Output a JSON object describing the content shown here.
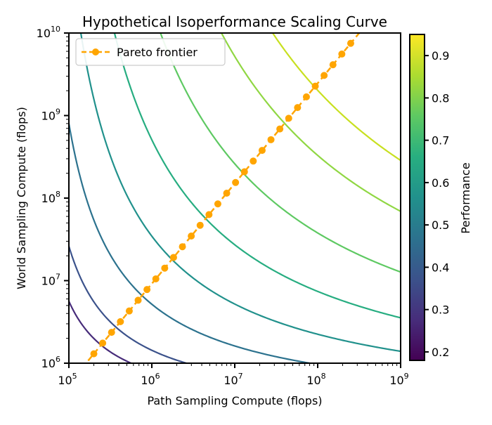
{
  "chart_data": {
    "type": "contour",
    "title": "Hypothetical Isoperformance Scaling Curve",
    "xlabel": "Path Sampling Compute (flops)",
    "ylabel": "World Sampling Compute (flops)",
    "xscale": "log",
    "yscale": "log",
    "xlim": [
      100000,
      1000000000
    ],
    "ylim": [
      1000000,
      10000000000
    ],
    "x_ticks": [
      {
        "value": 100000,
        "base": "10",
        "exp": "5"
      },
      {
        "value": 1000000,
        "base": "10",
        "exp": "6"
      },
      {
        "value": 10000000,
        "base": "10",
        "exp": "7"
      },
      {
        "value": 100000000,
        "base": "10",
        "exp": "8"
      },
      {
        "value": 1000000000,
        "base": "10",
        "exp": "9"
      }
    ],
    "y_ticks": [
      {
        "value": 1000000,
        "base": "10",
        "exp": "6"
      },
      {
        "value": 10000000,
        "base": "10",
        "exp": "7"
      },
      {
        "value": 100000000,
        "base": "10",
        "exp": "8"
      },
      {
        "value": 1000000000,
        "base": "10",
        "exp": "9"
      },
      {
        "value": 10000000000,
        "base": "10",
        "exp": "10"
      }
    ],
    "contour_levels": [
      0.25,
      0.3,
      0.4,
      0.5,
      0.6,
      0.7,
      0.8,
      0.9
    ],
    "contour_colors": [
      "#472c7a",
      "#3b528b",
      "#2c728e",
      "#21918c",
      "#27ad81",
      "#5ec962",
      "#90d743",
      "#c8e020"
    ],
    "contour_sum_log10": [
      11.6,
      12.0,
      12.7,
      13.5,
      14.4,
      15.4,
      16.5,
      17.3
    ],
    "series": [
      {
        "name": "Pareto frontier",
        "color": "#ffa500",
        "marker": "circle",
        "linestyle": "dashed",
        "x_start": 200000,
        "x_end": 250000000,
        "y_start": 1300000,
        "y_end": 7500000000,
        "points": 30
      }
    ],
    "colorbar": {
      "label": "Performance",
      "min": 0.18,
      "max": 0.95,
      "ticks": [
        "0.2",
        "0.3",
        "0.4",
        "0.5",
        "0.6",
        "0.7",
        "0.8",
        "0.9"
      ],
      "colormap": "viridis"
    },
    "legend_position": "top-left",
    "grid": false
  }
}
